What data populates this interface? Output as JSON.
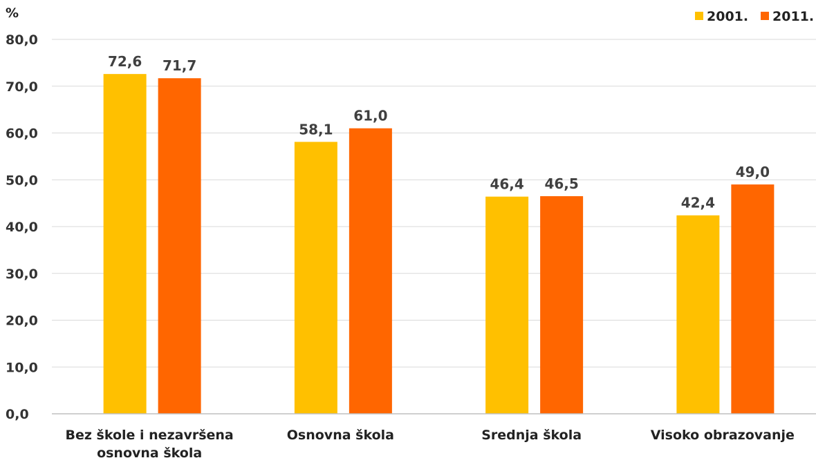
{
  "chart_data": {
    "type": "bar",
    "title": "",
    "xlabel": "",
    "ylabel": "%",
    "ylim": [
      0,
      80
    ],
    "ytick_step": 10,
    "ytick_labels": [
      "0,0",
      "10,0",
      "20,0",
      "30,0",
      "40,0",
      "50,0",
      "60,0",
      "70,0",
      "80,0"
    ],
    "grid": true,
    "legend_position": "top-right",
    "categories": [
      [
        "Bez škole i nezavršena",
        "osnovna škola"
      ],
      [
        "Osnovna škola"
      ],
      [
        "Srednja škola"
      ],
      [
        "Visoko obrazovanje"
      ]
    ],
    "series": [
      {
        "name": "2001.",
        "color": "#FFC000",
        "values": [
          72.6,
          58.1,
          46.4,
          42.4
        ],
        "labels": [
          "72,6",
          "58,1",
          "46,4",
          "42,4"
        ]
      },
      {
        "name": "2011.",
        "color": "#FF6600",
        "values": [
          71.7,
          61.0,
          46.5,
          49.0
        ],
        "labels": [
          "71,7",
          "61,0",
          "46,5",
          "49,0"
        ]
      }
    ]
  }
}
